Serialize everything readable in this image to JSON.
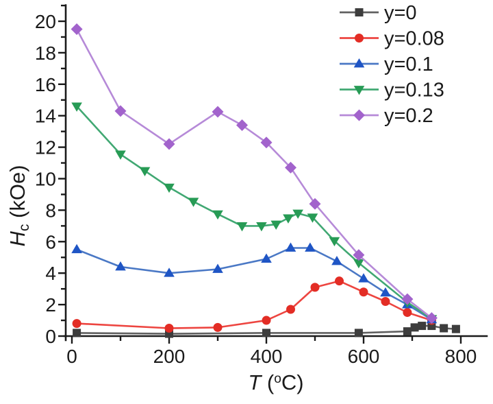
{
  "chart_data": {
    "type": "line",
    "title": "",
    "xlabel": {
      "symbol": "T",
      "pre": " (",
      "sup": "o",
      "post": "C)"
    },
    "ylabel": {
      "symbol": "H",
      "sub": "c",
      "rest": " (kOe)"
    },
    "x_axis": {
      "min": 0,
      "max": 800,
      "major_ticks": [
        0,
        200,
        400,
        600,
        800
      ],
      "minor_ticks": [
        100,
        300,
        500,
        700
      ]
    },
    "y_axis": {
      "min": 0,
      "max": 21,
      "major_ticks": [
        0,
        2,
        4,
        6,
        8,
        10,
        12,
        14,
        16,
        18,
        20
      ],
      "minor_ticks": [
        1,
        3,
        5,
        7,
        9,
        11,
        13,
        15,
        17,
        19,
        21
      ]
    },
    "grid": false,
    "legend": {
      "position": "top-right",
      "entries": [
        "y=0",
        "y=0.08",
        "y=0.1",
        "y=0.13",
        "y=0.2"
      ]
    },
    "series": [
      {
        "name": "y=0",
        "marker": "square",
        "line_color": "#606060",
        "marker_color": "#3d3d3d",
        "points": [
          [
            10,
            0.2
          ],
          [
            200,
            0.15
          ],
          [
            400,
            0.2
          ],
          [
            590,
            0.2
          ],
          [
            690,
            0.3
          ],
          [
            705,
            0.55
          ],
          [
            720,
            0.65
          ],
          [
            740,
            0.65
          ],
          [
            765,
            0.5
          ],
          [
            790,
            0.45
          ]
        ]
      },
      {
        "name": "y=0.08",
        "marker": "circle",
        "line_color": "#ed4540",
        "marker_color": "#e32d25",
        "points": [
          [
            10,
            0.8
          ],
          [
            200,
            0.5
          ],
          [
            300,
            0.55
          ],
          [
            400,
            1.0
          ],
          [
            450,
            1.7
          ],
          [
            500,
            3.1
          ],
          [
            550,
            3.5
          ],
          [
            600,
            2.8
          ],
          [
            645,
            2.2
          ],
          [
            690,
            1.5
          ],
          [
            740,
            1.0
          ]
        ]
      },
      {
        "name": "y=0.1",
        "marker": "triangle-up",
        "line_color": "#4a78c5",
        "marker_color": "#1f55c5",
        "points": [
          [
            10,
            5.5
          ],
          [
            100,
            4.4
          ],
          [
            200,
            4.0
          ],
          [
            300,
            4.25
          ],
          [
            400,
            4.9
          ],
          [
            450,
            5.6
          ],
          [
            490,
            5.6
          ],
          [
            545,
            4.75
          ],
          [
            600,
            3.65
          ],
          [
            645,
            2.75
          ],
          [
            690,
            2.0
          ],
          [
            740,
            1.05
          ]
        ]
      },
      {
        "name": "y=0.13",
        "marker": "triangle-down",
        "line_color": "#41a873",
        "marker_color": "#279b55",
        "points": [
          [
            10,
            14.6
          ],
          [
            100,
            11.55
          ],
          [
            150,
            10.5
          ],
          [
            200,
            9.45
          ],
          [
            250,
            8.55
          ],
          [
            300,
            7.75
          ],
          [
            350,
            7.0
          ],
          [
            390,
            7.0
          ],
          [
            420,
            7.1
          ],
          [
            445,
            7.5
          ],
          [
            465,
            7.8
          ],
          [
            495,
            7.55
          ],
          [
            540,
            6.05
          ],
          [
            590,
            4.65
          ],
          [
            690,
            2.15
          ],
          [
            740,
            1.1
          ]
        ]
      },
      {
        "name": "y=0.2",
        "marker": "diamond",
        "line_color": "#b68ad8",
        "marker_color": "#a263cc",
        "points": [
          [
            10,
            19.5
          ],
          [
            100,
            14.3
          ],
          [
            200,
            12.2
          ],
          [
            300,
            14.25
          ],
          [
            350,
            13.4
          ],
          [
            400,
            12.3
          ],
          [
            450,
            10.7
          ],
          [
            500,
            8.4
          ],
          [
            590,
            5.15
          ],
          [
            690,
            2.35
          ],
          [
            740,
            1.15
          ]
        ]
      }
    ]
  },
  "colors": {
    "axis": "#1a1a1a",
    "background": "#ffffff",
    "tick_label": "#1a1a1a"
  }
}
